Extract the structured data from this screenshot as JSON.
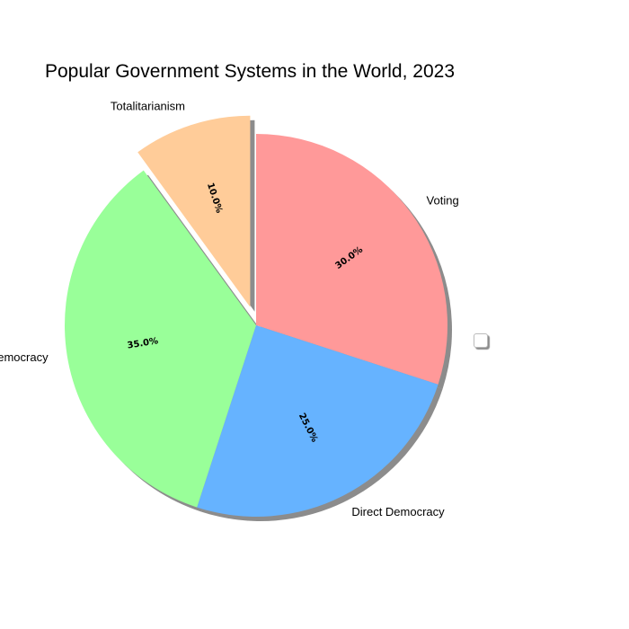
{
  "chart_data": {
    "type": "pie",
    "title": "Popular Government Systems in the World, 2023",
    "categories": [
      "Voting",
      "Direct Democracy",
      "Representative Democracy",
      "Totalitarianism"
    ],
    "values": [
      30.0,
      25.0,
      35.0,
      10.0
    ],
    "percent_labels": [
      "30.0%",
      "25.0%",
      "35.0%",
      "10.0%"
    ],
    "colors": [
      "#ff9999",
      "#66b3ff",
      "#99ff99",
      "#ffcc99"
    ],
    "explode": [
      0,
      0,
      0,
      0.1
    ],
    "start_angle_deg": 90,
    "direction": "clockwise",
    "shadow": true,
    "legend": "right"
  }
}
